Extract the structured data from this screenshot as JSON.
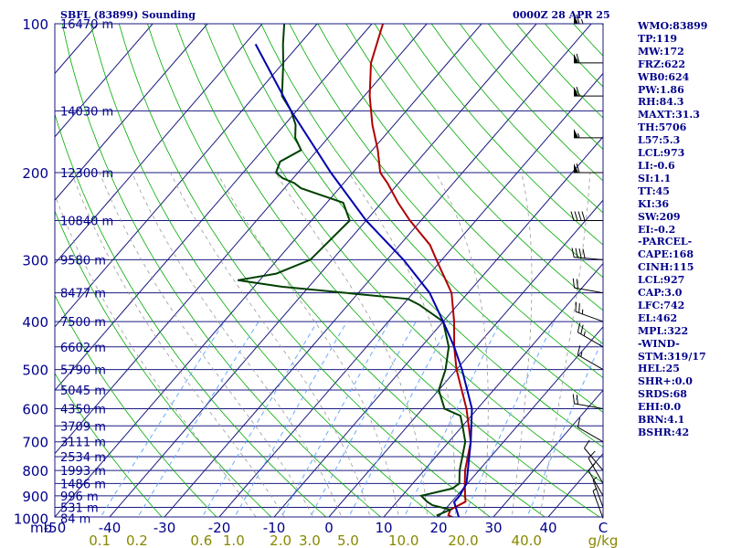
{
  "header": {
    "station": "SBFL (83899) Sounding",
    "time": "0000Z 28 APR 25"
  },
  "indices": [
    "WMO:83899",
    "TP:119",
    "MW:172",
    "FRZ:622",
    "WB0:624",
    "PW:1.86",
    "RH:84.3",
    "MAXT:31.3",
    "TH:5706",
    "L57:5.3",
    "LCL:973",
    "LI:-0.6",
    "SI:1.1",
    "TT:45",
    "KI:36",
    "SW:209",
    "EI:-0.2",
    "-PARCEL-",
    "CAPE:168",
    "CINH:115",
    "LCL:927",
    "CAP:3.0",
    "LFC:742",
    "EL:462",
    "MPL:322",
    "-WIND-",
    "STM:319/17",
    "HEL:25",
    "SHR+:0.0",
    "SRDS:68",
    "EHI:0.0",
    "BRN:4.1",
    "BSHR:42"
  ],
  "chart_data": {
    "type": "line",
    "subtype": "skew-t log-p sounding",
    "pressure_ticks": [
      "100",
      "200",
      "300",
      "400",
      "500",
      "600",
      "700",
      "800",
      "900",
      "1000"
    ],
    "pressure_tick_values": [
      100,
      200,
      300,
      400,
      500,
      600,
      700,
      800,
      900,
      1000
    ],
    "temp_ticks": [
      "-50",
      "-40",
      "-30",
      "-20",
      "-10",
      "0",
      "10",
      "20",
      "30",
      "40",
      "C"
    ],
    "temp_tick_values": [
      -50,
      -40,
      -30,
      -20,
      -10,
      0,
      10,
      20,
      30,
      40
    ],
    "mixing_ratio_ticks": [
      "0.1",
      "0.2",
      "0.6",
      "1.0",
      "2.0",
      "3.0",
      "5.0",
      "10.0",
      "20.0",
      "40.0",
      "g/kg"
    ],
    "mixing_ratio_values": [
      0.1,
      0.2,
      0.6,
      1.0,
      2.0,
      3.0,
      5.0,
      10.0,
      20.0,
      40.0
    ],
    "axis_label_pressure": "mb",
    "height_labels": [
      {
        "p": 100,
        "label": "16470 m"
      },
      {
        "p": 150,
        "label": "14030 m"
      },
      {
        "p": 200,
        "label": "12300 m"
      },
      {
        "p": 250,
        "label": "10840 m"
      },
      {
        "p": 300,
        "label": "9580 m"
      },
      {
        "p": 350,
        "label": "8477 m"
      },
      {
        "p": 400,
        "label": "7500 m"
      },
      {
        "p": 450,
        "label": "6602 m"
      },
      {
        "p": 500,
        "label": "5790 m"
      },
      {
        "p": 550,
        "label": "5045 m"
      },
      {
        "p": 600,
        "label": "4350 m"
      },
      {
        "p": 650,
        "label": "3709 m"
      },
      {
        "p": 700,
        "label": "3111 m"
      },
      {
        "p": 750,
        "label": "2534 m"
      },
      {
        "p": 800,
        "label": "1993 m"
      },
      {
        "p": 850,
        "label": "1486 m"
      },
      {
        "p": 900,
        "label": "996 m"
      },
      {
        "p": 950,
        "label": "531 m"
      },
      {
        "p": 1000,
        "label": "84 m"
      }
    ],
    "series": [
      {
        "kind": "temperature",
        "color": "#b00000",
        "points": [
          [
            1011,
            24.5
          ],
          [
            985,
            21.5
          ],
          [
            960,
            21
          ],
          [
            925,
            22.5
          ],
          [
            900,
            21.5
          ],
          [
            850,
            19.5
          ],
          [
            800,
            17.5
          ],
          [
            700,
            14
          ],
          [
            600,
            8
          ],
          [
            500,
            0
          ],
          [
            450,
            -4
          ],
          [
            400,
            -8
          ],
          [
            350,
            -13
          ],
          [
            300,
            -21
          ],
          [
            280,
            -24.5
          ],
          [
            250,
            -32
          ],
          [
            230,
            -37
          ],
          [
            210,
            -42
          ],
          [
            200,
            -45
          ],
          [
            180,
            -49
          ],
          [
            160,
            -54
          ],
          [
            140,
            -59
          ],
          [
            120,
            -64
          ],
          [
            100,
            -68
          ]
        ]
      },
      {
        "kind": "dewpoint",
        "color": "#004000",
        "points": [
          [
            1011,
            21
          ],
          [
            985,
            19.5
          ],
          [
            960,
            21
          ],
          [
            940,
            17
          ],
          [
            925,
            15.5
          ],
          [
            900,
            13.5
          ],
          [
            870,
            18
          ],
          [
            850,
            18.5
          ],
          [
            800,
            16.5
          ],
          [
            700,
            13
          ],
          [
            650,
            10
          ],
          [
            620,
            8
          ],
          [
            600,
            4
          ],
          [
            550,
            0
          ],
          [
            500,
            -2
          ],
          [
            450,
            -5
          ],
          [
            400,
            -10
          ],
          [
            370,
            -17
          ],
          [
            360,
            -20
          ],
          [
            340,
            -45
          ],
          [
            330,
            -54
          ],
          [
            320,
            -48
          ],
          [
            300,
            -44
          ],
          [
            250,
            -43
          ],
          [
            230,
            -47
          ],
          [
            215,
            -57
          ],
          [
            210,
            -59
          ],
          [
            205,
            -62
          ],
          [
            200,
            -64
          ],
          [
            190,
            -65
          ],
          [
            180,
            -63
          ],
          [
            170,
            -66
          ],
          [
            160,
            -68
          ],
          [
            150,
            -71
          ],
          [
            140,
            -75
          ],
          [
            120,
            -80
          ],
          [
            110,
            -83
          ],
          [
            100,
            -86
          ]
        ]
      },
      {
        "kind": "parcel",
        "color": "#0000b0",
        "points": [
          [
            1011,
            24.5
          ],
          [
            927,
            20.5
          ],
          [
            900,
            20.5
          ],
          [
            850,
            19.8
          ],
          [
            800,
            18
          ],
          [
            700,
            14
          ],
          [
            600,
            9
          ],
          [
            500,
            1
          ],
          [
            450,
            -4
          ],
          [
            400,
            -10
          ],
          [
            350,
            -17
          ],
          [
            300,
            -27
          ],
          [
            250,
            -40
          ],
          [
            200,
            -54
          ],
          [
            150,
            -71
          ],
          [
            110,
            -88
          ]
        ]
      }
    ],
    "wind_barbs": [
      {
        "p": 100,
        "dir": 270,
        "spd": 65
      },
      {
        "p": 120,
        "dir": 270,
        "spd": 60
      },
      {
        "p": 140,
        "dir": 270,
        "spd": 60
      },
      {
        "p": 170,
        "dir": 270,
        "spd": 55
      },
      {
        "p": 200,
        "dir": 270,
        "spd": 60
      },
      {
        "p": 250,
        "dir": 270,
        "spd": 40
      },
      {
        "p": 300,
        "dir": 275,
        "spd": 40
      },
      {
        "p": 350,
        "dir": 280,
        "spd": 20
      },
      {
        "p": 400,
        "dir": 290,
        "spd": 25
      },
      {
        "p": 450,
        "dir": 300,
        "spd": 25
      },
      {
        "p": 500,
        "dir": 300,
        "spd": 15
      },
      {
        "p": 600,
        "dir": 280,
        "spd": 20
      },
      {
        "p": 700,
        "dir": 300,
        "spd": 10
      },
      {
        "p": 800,
        "dir": 320,
        "spd": 10
      },
      {
        "p": 850,
        "dir": 330,
        "spd": 10
      },
      {
        "p": 900,
        "dir": 330,
        "spd": 10
      },
      {
        "p": 950,
        "dir": 340,
        "spd": 5
      },
      {
        "p": 1000,
        "dir": 340,
        "spd": 5
      }
    ],
    "colors": {
      "isobar": "#1a1a80",
      "isotherm": "#1a1a80",
      "dry_adiabat": "#00aa00",
      "moist_adiabat": "#999999",
      "mixing_ratio": "#66aaff",
      "dewpoint": "#004000",
      "temperature": "#b00000",
      "parcel": "#0000b0",
      "text_blue": "#00008b",
      "text_olive": "#888800"
    }
  }
}
